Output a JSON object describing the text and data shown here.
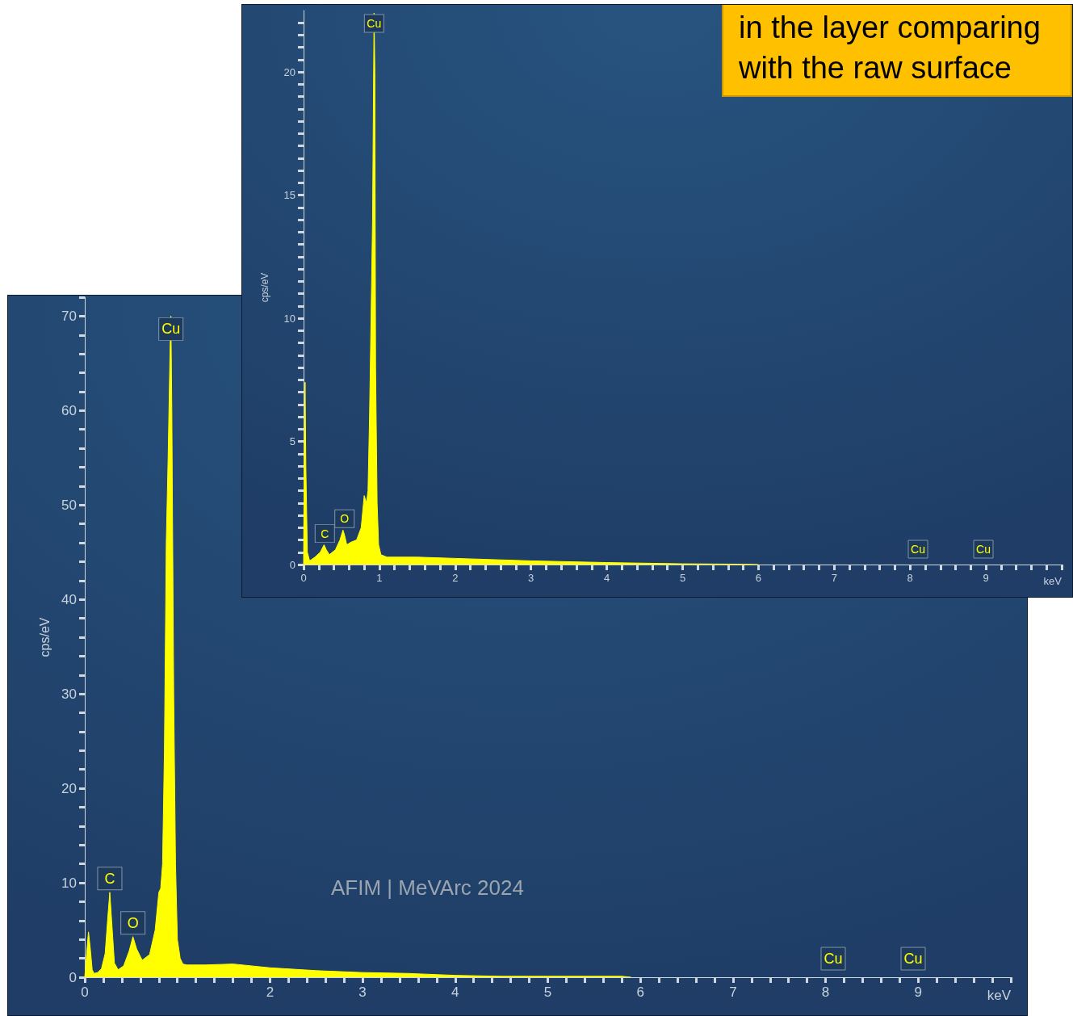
{
  "chart_data": [
    {
      "type": "area",
      "xlabel": "keV",
      "ylabel": "cps/eV",
      "annotations": [
        "in the layer comparing with the raw surface",
        {
          "text": "C",
          "x": 0.28,
          "y": 0.8
        },
        {
          "text": "O",
          "x": 0.54,
          "y": 1.4
        },
        {
          "text": "Cu",
          "x": 0.93,
          "y": 22.4
        },
        "Cu",
        "Cu"
      ],
      "x": [
        0,
        0.01,
        0.02,
        0.03,
        0.05,
        0.08,
        0.15,
        0.22,
        0.27,
        0.3,
        0.34,
        0.42,
        0.48,
        0.52,
        0.54,
        0.57,
        0.62,
        0.7,
        0.76,
        0.8,
        0.83,
        0.85,
        0.87,
        0.89,
        0.91,
        0.93,
        0.94,
        0.95,
        0.97,
        0.99,
        1.02,
        1.06,
        1.1,
        1.5,
        2,
        3,
        4,
        5,
        5.5,
        5.9,
        6.0
      ],
      "values": [
        0,
        5,
        7.4,
        4,
        0.5,
        0.15,
        0.3,
        0.5,
        0.8,
        0.6,
        0.4,
        0.6,
        1.0,
        1.4,
        1.2,
        0.8,
        0.9,
        1.0,
        1.5,
        2.8,
        2.5,
        3.0,
        6,
        10,
        14,
        22.4,
        20,
        8,
        2.5,
        0.8,
        0.4,
        0.35,
        0.3,
        0.3,
        0.25,
        0.15,
        0.08,
        0.03,
        0.02,
        0.01,
        0
      ],
      "color": "#ffff00",
      "xlim": [
        0,
        10
      ],
      "ylim": [
        0,
        22.5
      ],
      "grid": false,
      "marker": "none",
      "xticks": [
        0,
        {
          "value": 0.2,
          "label": null
        },
        {
          "value": 0.4,
          "label": null
        },
        {
          "value": 0.6,
          "label": null
        },
        {
          "value": 0.8,
          "label": null
        },
        1,
        {
          "value": 1.2,
          "label": null
        },
        {
          "value": 1.4,
          "label": null
        },
        {
          "value": 1.6,
          "label": null
        },
        {
          "value": 1.8,
          "label": null
        },
        2,
        {
          "value": 2.2,
          "label": null
        },
        {
          "value": 2.4,
          "label": null
        },
        {
          "value": 2.6,
          "label": null
        },
        {
          "value": 2.8,
          "label": null
        },
        3,
        {
          "value": 3.2,
          "label": null
        },
        {
          "value": 3.4,
          "label": null
        },
        {
          "value": 3.6,
          "label": null
        },
        {
          "value": 3.8,
          "label": null
        },
        4,
        {
          "value": 4.2,
          "label": null
        },
        {
          "value": 4.4,
          "label": null
        },
        {
          "value": 4.6,
          "label": null
        },
        {
          "value": 4.8,
          "label": null
        },
        5,
        {
          "value": 5.2,
          "label": null
        },
        {
          "value": 5.4,
          "label": null
        },
        {
          "value": 5.6,
          "label": null
        },
        {
          "value": 5.8,
          "label": null
        },
        6,
        {
          "value": 6.2,
          "label": null
        },
        {
          "value": 6.4,
          "label": null
        },
        {
          "value": 6.6,
          "label": null
        },
        {
          "value": 6.8,
          "label": null
        },
        7,
        {
          "value": 7.2,
          "label": null
        },
        {
          "value": 7.4,
          "label": null
        },
        {
          "value": 7.6,
          "label": null
        },
        {
          "value": 7.8,
          "label": null
        },
        8,
        {
          "value": 8.2,
          "label": null
        },
        {
          "value": 8.4,
          "label": null
        },
        {
          "value": 8.6,
          "label": null
        },
        {
          "value": 8.8,
          "label": null
        },
        9,
        {
          "value": 9.2,
          "label": null
        },
        {
          "value": 9.4,
          "label": null
        },
        {
          "value": 9.6,
          "label": null
        },
        {
          "value": 9.8,
          "label": null
        },
        {
          "value": 10,
          "label": null
        }
      ],
      "yticks": [
        0,
        {
          "value": 0.5,
          "label": null
        },
        {
          "value": 1,
          "label": null
        },
        {
          "value": 1.5,
          "label": null
        },
        {
          "value": 2,
          "label": null
        },
        {
          "value": 2.5,
          "label": null
        },
        {
          "value": 3,
          "label": null
        },
        {
          "value": 3.5,
          "label": null
        },
        {
          "value": 4,
          "label": null
        },
        {
          "value": 4.5,
          "label": null
        },
        5,
        {
          "value": 5.5,
          "label": null
        },
        {
          "value": 6,
          "label": null
        },
        {
          "value": 6.5,
          "label": null
        },
        {
          "value": 7,
          "label": null
        },
        {
          "value": 7.5,
          "label": null
        },
        {
          "value": 8,
          "label": null
        },
        {
          "value": 8.5,
          "label": null
        },
        {
          "value": 9,
          "label": null
        },
        {
          "value": 9.5,
          "label": null
        },
        10,
        {
          "value": 10.5,
          "label": null
        },
        {
          "value": 11,
          "label": null
        },
        {
          "value": 11.5,
          "label": null
        },
        {
          "value": 12,
          "label": null
        },
        {
          "value": 12.5,
          "label": null
        },
        {
          "value": 13,
          "label": null
        },
        {
          "value": 13.5,
          "label": null
        },
        {
          "value": 14,
          "label": null
        },
        {
          "value": 14.5,
          "label": null
        },
        15,
        {
          "value": 15.5,
          "label": null
        },
        {
          "value": 16,
          "label": null
        },
        {
          "value": 16.5,
          "label": null
        },
        {
          "value": 17,
          "label": null
        },
        {
          "value": 17.5,
          "label": null
        },
        {
          "value": 18,
          "label": null
        },
        {
          "value": 18.5,
          "label": null
        },
        {
          "value": 19,
          "label": null
        },
        {
          "value": 19.5,
          "label": null
        },
        20,
        {
          "value": 20.5,
          "label": null
        },
        {
          "value": 21,
          "label": null
        },
        {
          "value": 21.5,
          "label": null
        },
        {
          "value": 22,
          "label": null
        }
      ]
    },
    {
      "type": "area",
      "xlabel": "keV",
      "ylabel": "cps/eV",
      "annotations": [
        "AFIM | MeVArc 2024",
        {
          "text": "C",
          "x": 0.27,
          "y": 9.0
        },
        {
          "text": "O",
          "x": 0.52,
          "y": 4.3
        },
        {
          "text": "Cu",
          "x": 0.93,
          "y": 70
        },
        "Cu",
        "Cu"
      ],
      "x": [
        0,
        0.02,
        0.04,
        0.06,
        0.08,
        0.1,
        0.14,
        0.18,
        0.22,
        0.25,
        0.27,
        0.29,
        0.32,
        0.36,
        0.42,
        0.48,
        0.52,
        0.56,
        0.62,
        0.7,
        0.76,
        0.8,
        0.82,
        0.84,
        0.86,
        0.88,
        0.9,
        0.92,
        0.93,
        0.94,
        0.96,
        0.98,
        1.0,
        1.03,
        1.06,
        1.1,
        1.3,
        1.6,
        2.0,
        2.5,
        3.0,
        3.5,
        4.0,
        4.5,
        5.0,
        5.5,
        5.8,
        5.9
      ],
      "values": [
        0,
        2.5,
        4.8,
        3.0,
        0.8,
        0.4,
        0.5,
        0.9,
        2.5,
        6.5,
        9.0,
        6.0,
        1.5,
        0.8,
        1.2,
        2.8,
        4.3,
        3.0,
        1.8,
        2.4,
        5.0,
        9.0,
        9.4,
        12,
        24,
        46,
        55,
        66,
        70,
        60,
        30,
        12,
        4,
        2,
        1.4,
        1.3,
        1.3,
        1.4,
        1.0,
        0.7,
        0.5,
        0.4,
        0.2,
        0.1,
        0.1,
        0.1,
        0.1,
        0
      ],
      "color": "#ffff00",
      "xlim": [
        0,
        10
      ],
      "ylim": [
        0,
        72
      ],
      "grid": false,
      "marker": "none",
      "xticks": [
        0,
        {
          "value": 0.2,
          "label": null
        },
        {
          "value": 0.4,
          "label": null
        },
        {
          "value": 0.6,
          "label": null
        },
        {
          "value": 0.8,
          "label": null
        },
        {
          "value": 1,
          "label": null
        },
        {
          "value": 1.2,
          "label": null
        },
        {
          "value": 1.4,
          "label": null
        },
        {
          "value": 1.6,
          "label": null
        },
        {
          "value": 1.8,
          "label": null
        },
        2,
        {
          "value": 2.2,
          "label": null
        },
        {
          "value": 2.4,
          "label": null
        },
        {
          "value": 2.6,
          "label": null
        },
        {
          "value": 2.8,
          "label": null
        },
        3,
        {
          "value": 3.2,
          "label": null
        },
        {
          "value": 3.4,
          "label": null
        },
        {
          "value": 3.6,
          "label": null
        },
        {
          "value": 3.8,
          "label": null
        },
        4,
        {
          "value": 4.2,
          "label": null
        },
        {
          "value": 4.4,
          "label": null
        },
        {
          "value": 4.6,
          "label": null
        },
        {
          "value": 4.8,
          "label": null
        },
        5,
        {
          "value": 5.2,
          "label": null
        },
        {
          "value": 5.4,
          "label": null
        },
        {
          "value": 5.6,
          "label": null
        },
        {
          "value": 5.8,
          "label": null
        },
        6,
        {
          "value": 6.2,
          "label": null
        },
        {
          "value": 6.4,
          "label": null
        },
        {
          "value": 6.6,
          "label": null
        },
        {
          "value": 6.8,
          "label": null
        },
        7,
        {
          "value": 7.2,
          "label": null
        },
        {
          "value": 7.4,
          "label": null
        },
        {
          "value": 7.6,
          "label": null
        },
        {
          "value": 7.8,
          "label": null
        },
        8,
        {
          "value": 8.2,
          "label": null
        },
        {
          "value": 8.4,
          "label": null
        },
        {
          "value": 8.6,
          "label": null
        },
        {
          "value": 8.8,
          "label": null
        },
        9,
        {
          "value": 9.2,
          "label": null
        },
        {
          "value": 9.4,
          "label": null
        },
        {
          "value": 9.6,
          "label": null
        },
        {
          "value": 9.8,
          "label": null
        },
        {
          "value": 10,
          "label": null
        }
      ],
      "yticks": [
        0,
        {
          "value": 2,
          "label": null
        },
        {
          "value": 4,
          "label": null
        },
        {
          "value": 6,
          "label": null
        },
        {
          "value": 8,
          "label": null
        },
        10,
        {
          "value": 12,
          "label": null
        },
        {
          "value": 14,
          "label": null
        },
        {
          "value": 16,
          "label": null
        },
        {
          "value": 18,
          "label": null
        },
        20,
        {
          "value": 22,
          "label": null
        },
        {
          "value": 24,
          "label": null
        },
        {
          "value": 26,
          "label": null
        },
        {
          "value": 28,
          "label": null
        },
        30,
        {
          "value": 32,
          "label": null
        },
        {
          "value": 34,
          "label": null
        },
        {
          "value": 36,
          "label": null
        },
        {
          "value": 38,
          "label": null
        },
        40,
        {
          "value": 42,
          "label": null
        },
        {
          "value": 44,
          "label": null
        },
        {
          "value": 46,
          "label": null
        },
        {
          "value": 48,
          "label": null
        },
        50,
        {
          "value": 52,
          "label": null
        },
        {
          "value": 54,
          "label": null
        },
        {
          "value": 56,
          "label": null
        },
        {
          "value": 58,
          "label": null
        },
        60,
        {
          "value": 62,
          "label": null
        },
        {
          "value": 64,
          "label": null
        },
        {
          "value": 66,
          "label": null
        },
        {
          "value": 68,
          "label": null
        },
        70,
        {
          "value": 72,
          "label": null
        }
      ]
    }
  ]
}
